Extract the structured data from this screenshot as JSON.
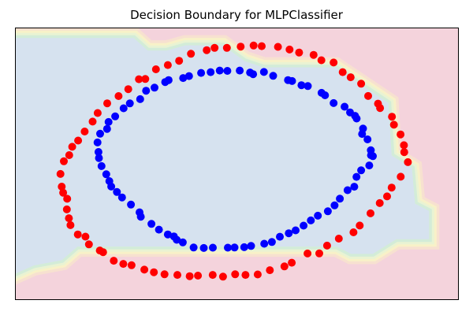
{
  "chart_data": {
    "type": "scatter",
    "title": "Decision Boundary for MLPClassifier",
    "xlabel": "",
    "ylabel": "",
    "xlim": [
      -1.42,
      1.42
    ],
    "ylim": [
      -1.3,
      1.3
    ],
    "ticks_visible": false,
    "colors": {
      "region_inside": "#d6e2ef",
      "region_outside": "#f4d3dc",
      "inner_points": "#0000ff",
      "outer_points": "#ff0000",
      "boundary_bands": [
        "#f7e1d0",
        "#f8f1c8",
        "#e9f3d3",
        "#d3ecd8"
      ]
    },
    "boundary_polygon": [
      [
        -1.42,
        1.2
      ],
      [
        -0.66,
        1.2
      ],
      [
        -0.57,
        1.08
      ],
      [
        -0.45,
        1.08
      ],
      [
        -0.33,
        1.13
      ],
      [
        -0.09,
        1.13
      ],
      [
        0.05,
        0.98
      ],
      [
        0.17,
        0.92
      ],
      [
        0.63,
        0.92
      ],
      [
        0.8,
        0.75
      ],
      [
        0.97,
        0.58
      ],
      [
        0.99,
        0.08
      ],
      [
        1.12,
        -0.04
      ],
      [
        1.14,
        -0.38
      ],
      [
        1.23,
        -0.45
      ],
      [
        1.23,
        -0.72
      ],
      [
        1.02,
        -0.72
      ],
      [
        0.87,
        -0.86
      ],
      [
        0.73,
        -0.86
      ],
      [
        0.64,
        -0.79
      ],
      [
        -1.02,
        -0.79
      ],
      [
        -1.12,
        -0.92
      ],
      [
        -1.3,
        -0.97
      ],
      [
        -1.42,
        -1.05
      ]
    ],
    "series": [
      {
        "class": 0,
        "color": "#ff0000",
        "x": [
          1.094,
          1.071,
          1.069,
          1.047,
          1.005,
          0.992,
          0.916,
          0.903,
          0.84,
          0.795,
          0.728,
          0.677,
          0.619,
          0.541,
          0.491,
          0.398,
          0.337,
          0.263,
          0.159,
          0.107,
          0.024,
          -0.064,
          -0.143,
          -0.193,
          -0.294,
          -0.37,
          -0.442,
          -0.518,
          -0.586,
          -0.627,
          -0.695,
          -0.757,
          -0.83,
          -0.891,
          -0.923,
          -0.974,
          -1.016,
          -1.054,
          -1.073,
          -1.107,
          -1.129,
          -1.121,
          -1.112,
          -1.086,
          -1.088,
          -1.075,
          -1.065,
          -1.018,
          -0.969,
          -0.947,
          -0.877,
          -0.856,
          -0.788,
          -0.727,
          -0.674,
          -0.592,
          -0.531,
          -0.463,
          -0.381,
          -0.302,
          -0.249,
          -0.155,
          -0.089,
          -0.011,
          0.055,
          0.133,
          0.211,
          0.304,
          0.351,
          0.452,
          0.527,
          0.577,
          0.652,
          0.746,
          0.786,
          0.855,
          0.914,
          0.961,
          0.99,
          1.048
        ],
        "y": [
          0.016,
          0.111,
          0.177,
          0.28,
          0.373,
          0.449,
          0.532,
          0.574,
          0.647,
          0.764,
          0.826,
          0.875,
          0.966,
          0.988,
          1.039,
          1.062,
          1.09,
          1.116,
          1.123,
          1.129,
          1.118,
          1.106,
          1.106,
          1.084,
          1.05,
          0.983,
          0.942,
          0.902,
          0.809,
          0.807,
          0.712,
          0.646,
          0.577,
          0.485,
          0.403,
          0.308,
          0.222,
          0.162,
          0.083,
          0.024,
          -0.097,
          -0.218,
          -0.276,
          -0.334,
          -0.435,
          -0.519,
          -0.585,
          -0.674,
          -0.695,
          -0.769,
          -0.827,
          -0.843,
          -0.925,
          -0.955,
          -0.968,
          -1.01,
          -1.035,
          -1.054,
          -1.06,
          -1.072,
          -1.067,
          -1.06,
          -1.077,
          -1.054,
          -1.06,
          -1.056,
          -1.015,
          -0.979,
          -0.944,
          -0.856,
          -0.855,
          -0.781,
          -0.714,
          -0.654,
          -0.589,
          -0.473,
          -0.375,
          -0.311,
          -0.227,
          -0.123
        ]
      },
      {
        "class": 1,
        "color": "#0000ff",
        "x": [
          0.87,
          0.857,
          0.836,
          0.801,
          0.807,
          0.766,
          0.756,
          0.724,
          0.689,
          0.619,
          0.564,
          0.542,
          0.454,
          0.413,
          0.353,
          0.327,
          0.232,
          0.173,
          0.104,
          0.084,
          0.018,
          -0.061,
          -0.11,
          -0.168,
          -0.229,
          -0.306,
          -0.344,
          -0.437,
          -0.459,
          -0.527,
          -0.581,
          -0.619,
          -0.685,
          -0.725,
          -0.779,
          -0.821,
          -0.831,
          -0.875,
          -0.892,
          -0.886,
          -0.883,
          -0.866,
          -0.836,
          -0.816,
          -0.804,
          -0.768,
          -0.735,
          -0.678,
          -0.623,
          -0.615,
          -0.547,
          -0.499,
          -0.442,
          -0.403,
          -0.385,
          -0.346,
          -0.277,
          -0.212,
          -0.154,
          -0.058,
          -0.015,
          0.047,
          0.091,
          0.175,
          0.224,
          0.275,
          0.332,
          0.376,
          0.427,
          0.473,
          0.518,
          0.582,
          0.625,
          0.659,
          0.708,
          0.751,
          0.765,
          0.795,
          0.847,
          0.858
        ],
        "y": [
          0.073,
          0.129,
          0.233,
          0.285,
          0.336,
          0.432,
          0.458,
          0.491,
          0.545,
          0.579,
          0.654,
          0.677,
          0.742,
          0.75,
          0.79,
          0.799,
          0.839,
          0.876,
          0.855,
          0.871,
          0.89,
          0.887,
          0.89,
          0.875,
          0.867,
          0.837,
          0.818,
          0.799,
          0.78,
          0.727,
          0.697,
          0.617,
          0.576,
          0.53,
          0.452,
          0.399,
          0.333,
          0.287,
          0.204,
          0.113,
          0.055,
          -0.022,
          -0.1,
          -0.165,
          -0.217,
          -0.269,
          -0.321,
          -0.389,
          -0.463,
          -0.505,
          -0.573,
          -0.628,
          -0.674,
          -0.693,
          -0.725,
          -0.75,
          -0.799,
          -0.803,
          -0.8,
          -0.8,
          -0.799,
          -0.796,
          -0.784,
          -0.763,
          -0.746,
          -0.696,
          -0.663,
          -0.635,
          -0.59,
          -0.54,
          -0.495,
          -0.453,
          -0.397,
          -0.333,
          -0.252,
          -0.219,
          -0.125,
          -0.062,
          -0.016,
          0.082
        ]
      }
    ]
  }
}
